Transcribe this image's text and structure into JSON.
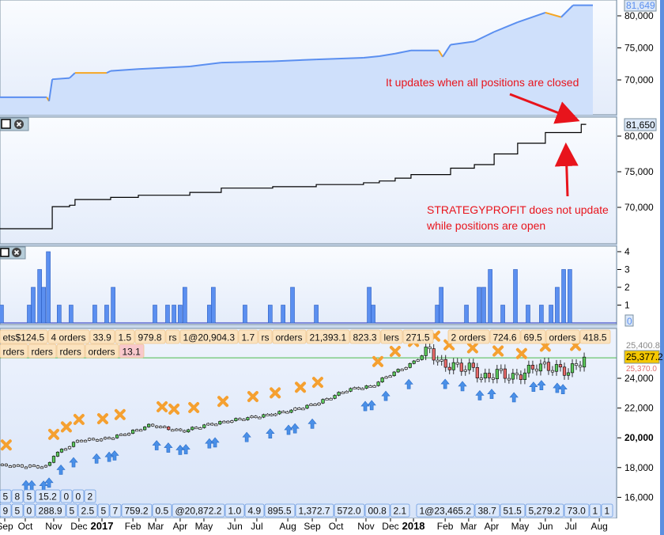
{
  "colors": {
    "equity_line": "#5b8ff0",
    "equity_fill": "#cfe0fb",
    "equity_down": "#f5a623",
    "profit_line": "#000000",
    "bar": "#5b8ff0",
    "price_line": "#4cbb4c",
    "exit": "#f5a030",
    "exit_last": "#e85a6a",
    "entry": "#4a90e8",
    "note": "#e8141c",
    "last_price_bg": "#f5c800"
  },
  "panel_equity": {
    "last_value": "81,649",
    "ticks": [
      {
        "value": 80000,
        "label": "80,000"
      },
      {
        "value": 75000,
        "label": "75,000"
      },
      {
        "value": 70000,
        "label": "70,000"
      }
    ],
    "series": [
      [
        -0.2,
        67300
      ],
      [
        1.7,
        67300
      ],
      [
        1.79,
        66700
      ],
      [
        1.92,
        70100
      ],
      [
        2.62,
        70300
      ],
      [
        2.84,
        71100
      ],
      [
        4.12,
        71100
      ],
      [
        4.28,
        71400
      ],
      [
        5.4,
        71700
      ],
      [
        7.48,
        72100
      ],
      [
        8.75,
        72700
      ],
      [
        10.83,
        72900
      ],
      [
        12.59,
        73200
      ],
      [
        14.5,
        73450
      ],
      [
        15.14,
        73700
      ],
      [
        15.78,
        74100
      ],
      [
        16.42,
        74600
      ],
      [
        17.54,
        74600
      ],
      [
        17.7,
        73600
      ],
      [
        18.02,
        75500
      ],
      [
        18.98,
        76000
      ],
      [
        19.78,
        77500
      ],
      [
        20.73,
        79000
      ],
      [
        21.85,
        80500
      ],
      [
        22.49,
        79800
      ],
      [
        22.97,
        81649
      ],
      [
        23.77,
        81649
      ]
    ]
  },
  "panel_profit": {
    "last_value": "81,650",
    "ticks": [
      {
        "value": 80000,
        "label": "80,000"
      },
      {
        "value": 75000,
        "label": "75,000"
      },
      {
        "value": 70000,
        "label": "70,000"
      }
    ],
    "series": [
      [
        -0.2,
        67000
      ],
      [
        1.92,
        67000
      ],
      [
        1.92,
        70100
      ],
      [
        2.62,
        70300
      ],
      [
        2.84,
        71100
      ],
      [
        4.12,
        71100
      ],
      [
        4.28,
        71400
      ],
      [
        5.4,
        71700
      ],
      [
        7.48,
        72100
      ],
      [
        8.75,
        72700
      ],
      [
        10.83,
        72900
      ],
      [
        12.59,
        73200
      ],
      [
        14.5,
        73450
      ],
      [
        15.14,
        73700
      ],
      [
        15.78,
        74100
      ],
      [
        16.42,
        74600
      ],
      [
        17.54,
        74600
      ],
      [
        18.02,
        75500
      ],
      [
        18.98,
        76000
      ],
      [
        19.78,
        77500
      ],
      [
        20.73,
        79000
      ],
      [
        21.85,
        80500
      ],
      [
        22.97,
        80500
      ],
      [
        23.3,
        81650
      ],
      [
        23.5,
        81650
      ]
    ]
  },
  "panel_orders": {
    "last_value": "0",
    "ticks": [
      {
        "value": 4,
        "label": "4"
      },
      {
        "value": 3,
        "label": "3"
      },
      {
        "value": 2,
        "label": "2"
      },
      {
        "value": 1,
        "label": "1"
      }
    ],
    "bars": [
      [
        -0.13,
        1
      ],
      [
        0.99,
        1
      ],
      [
        1.15,
        2
      ],
      [
        1.41,
        3
      ],
      [
        1.57,
        2
      ],
      [
        1.76,
        4
      ],
      [
        2.2,
        1
      ],
      [
        2.68,
        1
      ],
      [
        3.64,
        1
      ],
      [
        4.12,
        1
      ],
      [
        4.38,
        2
      ],
      [
        6.07,
        1
      ],
      [
        6.58,
        1
      ],
      [
        6.84,
        1
      ],
      [
        7.09,
        1
      ],
      [
        7.28,
        2
      ],
      [
        8.27,
        1
      ],
      [
        8.43,
        2
      ],
      [
        9.71,
        1
      ],
      [
        10.73,
        1
      ],
      [
        11.25,
        1
      ],
      [
        11.63,
        2
      ],
      [
        12.59,
        1
      ],
      [
        14.73,
        2
      ],
      [
        14.89,
        1
      ],
      [
        17.48,
        1
      ],
      [
        17.64,
        2
      ],
      [
        18.66,
        1
      ],
      [
        19.17,
        2
      ],
      [
        19.36,
        2
      ],
      [
        19.62,
        3
      ],
      [
        20.13,
        1
      ],
      [
        20.64,
        3
      ],
      [
        21.15,
        1
      ],
      [
        21.69,
        1
      ],
      [
        22.08,
        1
      ],
      [
        22.33,
        2
      ],
      [
        22.59,
        3
      ],
      [
        22.84,
        3
      ]
    ]
  },
  "panel_price": {
    "last_price": "25,377.2",
    "high_label": "25,400.8",
    "low_label": "25,370.0",
    "ticks": [
      {
        "value": 24000,
        "label": "24,000"
      },
      {
        "value": 22000,
        "label": "22,000"
      },
      {
        "value": 20000,
        "label": "20,000"
      },
      {
        "value": 18000,
        "label": "18,000"
      },
      {
        "value": 16000,
        "label": "16,000"
      }
    ],
    "path": [
      [
        -0.2,
        18150
      ],
      [
        1.72,
        18050
      ],
      [
        1.98,
        18850
      ],
      [
        3.0,
        19850
      ],
      [
        3.96,
        19900
      ],
      [
        4.92,
        20280
      ],
      [
        5.88,
        20860
      ],
      [
        7.16,
        20440
      ],
      [
        8.12,
        20860
      ],
      [
        9.39,
        21230
      ],
      [
        10.67,
        21550
      ],
      [
        11.63,
        21870
      ],
      [
        12.59,
        22300
      ],
      [
        13.87,
        23250
      ],
      [
        14.83,
        23470
      ],
      [
        15.46,
        24160
      ],
      [
        16.42,
        24960
      ],
      [
        17.2,
        26000
      ],
      [
        17.54,
        24960
      ],
      [
        18.02,
        24850
      ],
      [
        18.98,
        24650
      ],
      [
        19.3,
        23900
      ],
      [
        19.94,
        24450
      ],
      [
        20.58,
        24000
      ],
      [
        21.53,
        24850
      ],
      [
        22.17,
        24700
      ],
      [
        22.81,
        24450
      ],
      [
        23.45,
        25377
      ]
    ],
    "exits": [
      0.06,
      1.98,
      2.49,
      3.0,
      3.96,
      4.66,
      6.36,
      6.84,
      7.64,
      8.82,
      10.03,
      10.93,
      11.95,
      12.65,
      15.08,
      15.78,
      16.52,
      17.38,
      17.96,
      18.91,
      19.94,
      20.89,
      21.85,
      23.07
    ],
    "exit_last": 23.52,
    "entries": [
      0.86,
      1.09,
      1.57,
      1.79,
      2.27,
      2.78,
      3.71,
      4.22,
      4.44,
      6.14,
      6.61,
      7.09,
      7.32,
      8.27,
      8.5,
      9.78,
      10.73,
      11.47,
      11.73,
      12.43,
      14.57,
      14.83,
      15.4,
      16.33,
      17.8,
      18.5,
      19.2,
      19.68,
      20.58,
      21.37,
      21.69,
      22.33,
      22.56
    ]
  },
  "order_tags_left": [
    "ets$124.5",
    "4 orders",
    "33.9",
    "1.5",
    "979.8",
    "rs",
    "1@20,904.3",
    "1.7",
    "rs",
    "orders",
    "21,393.1",
    "823.3",
    "lers",
    "271.5"
  ],
  "order_tags_right": [
    "2 orders",
    "724.6",
    "69.5",
    "orders",
    "418.5",
    "rders",
    "rders",
    "rders",
    "orders",
    "13.1"
  ],
  "bottom_tags_left": [
    "9",
    "5",
    "0",
    "288.9",
    "5",
    "2.5",
    "5",
    "7",
    "759.2",
    "0.5",
    "@20,872.2",
    "1.0",
    "4.9",
    "895.5",
    "1,372.7",
    "572.0",
    "00.8",
    "2.1"
  ],
  "bottom_tags_right": [
    "1@23,465.2",
    "38.7",
    "51.5",
    "5,279.2",
    "73.0",
    "1",
    "1",
    "5",
    "8",
    "5",
    "15.2",
    "0",
    "0",
    "2"
  ],
  "x_axis": [
    {
      "m": 0,
      "label": "Sep"
    },
    {
      "m": 0.83,
      "label": "Oct"
    },
    {
      "m": 1.98,
      "label": "Nov"
    },
    {
      "m": 3.0,
      "label": "Dec"
    },
    {
      "m": 3.93,
      "label": "2017",
      "year": true
    },
    {
      "m": 5.18,
      "label": "Feb"
    },
    {
      "m": 6.1,
      "label": "Mar"
    },
    {
      "m": 7.09,
      "label": "Apr"
    },
    {
      "m": 8.05,
      "label": "May"
    },
    {
      "m": 9.3,
      "label": "Jun"
    },
    {
      "m": 10.19,
      "label": "Jul"
    },
    {
      "m": 11.44,
      "label": "Aug"
    },
    {
      "m": 12.43,
      "label": "Sep"
    },
    {
      "m": 13.39,
      "label": "Oct"
    },
    {
      "m": 14.6,
      "label": "Nov"
    },
    {
      "m": 15.59,
      "label": "Dec"
    },
    {
      "m": 16.52,
      "label": "2018",
      "year": true
    },
    {
      "m": 17.8,
      "label": "Feb"
    },
    {
      "m": 18.75,
      "label": "Mar"
    },
    {
      "m": 19.68,
      "label": "Apr"
    },
    {
      "m": 20.83,
      "label": "May"
    },
    {
      "m": 21.85,
      "label": "Jun"
    },
    {
      "m": 22.88,
      "label": "Jul"
    },
    {
      "m": 24.03,
      "label": "Aug"
    }
  ],
  "annotations": {
    "top": "It updates when all positions are closed",
    "mid_line1": "STRATEGYPROFIT does not update",
    "mid_line2": "while positions are open"
  }
}
